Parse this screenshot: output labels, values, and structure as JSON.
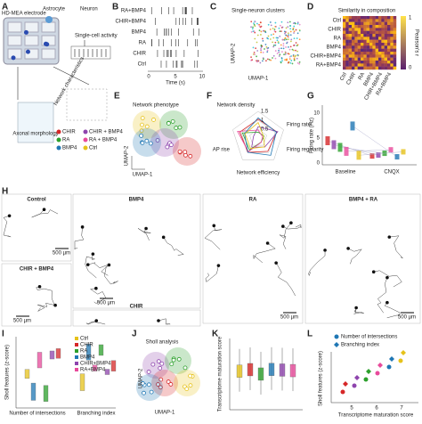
{
  "panels": {
    "A": {
      "label": "A",
      "electrode": "HD-MEA electrode",
      "astrocyte": "Astrocyte",
      "neuron": "Neuron",
      "activity": "Single-cell activity",
      "network": "Network characteristics",
      "morphology": "Axonal morphology",
      "legend": [
        "CHIR",
        "CHIR + BMP4",
        "RA",
        "RA + BMP4",
        "BMP4",
        "Ctrl"
      ]
    },
    "B": {
      "label": "B",
      "rows": [
        "RA+BMP4",
        "CHIR+BMP4",
        "BMP4",
        "RA",
        "CHIR",
        "Ctrl"
      ],
      "xticks": [
        "0",
        "5",
        "10"
      ],
      "xlabel": "Time (s)"
    },
    "C": {
      "label": "C",
      "title": "Single-neuron clusters",
      "ylabel": "UMAP-2",
      "xlabel": "UMAP-1"
    },
    "D": {
      "label": "D",
      "title": "Similarity in composition",
      "rows": [
        "Ctrl",
        "CHIR",
        "RA",
        "BMP4",
        "CHIR+BMP4",
        "RA+BMP4"
      ],
      "colorbar_ticks": [
        "1",
        "0"
      ],
      "colorbar_label": "Pearson's r"
    },
    "E": {
      "label": "E",
      "title": "Network phenotype",
      "ylabel": "UMAP-2",
      "xlabel": "UMAP-1"
    },
    "F": {
      "label": "F",
      "axes": [
        "Network density",
        "Firing rate",
        "Firing regularity",
        "Network efficiency",
        "AP rise"
      ],
      "ticks": [
        "1.5",
        "1",
        "0.5"
      ]
    },
    "G": {
      "label": "G",
      "ylabel": "Firing rate (Hz)",
      "yticks": [
        "0",
        "5",
        "10"
      ],
      "categories": [
        "Baseline",
        "CNQX"
      ]
    },
    "H": {
      "label": "H",
      "titles": [
        "Control",
        "BMP4",
        "RA",
        "BMP4 + RA",
        "CHIR + BMP4",
        "CHIR"
      ],
      "scale_bars": [
        "500 µm",
        "500 µm",
        "500 µm",
        "500 µm",
        "500 µm"
      ]
    },
    "I": {
      "label": "I",
      "ylabel": "Sholl features (z-score)",
      "categories": [
        "Number of intersections",
        "Branching index"
      ],
      "legend": [
        "Ctrl",
        "CHIR",
        "RA",
        "BMP4",
        "CHIR+BMP4",
        "RA+BMP4"
      ]
    },
    "J": {
      "label": "J",
      "title": "Sholl analysis",
      "ylabel": "UMAP-2",
      "xlabel": "UMAP-1"
    },
    "K": {
      "label": "K",
      "ylabel": "Transcriptome maturation score"
    },
    "L": {
      "label": "L",
      "legend": [
        "Number of intersections",
        "Branching index"
      ],
      "ylabel": "Sholl features (z-score)",
      "xticks": [
        "5",
        "6",
        "7"
      ],
      "xlabel": "Transcriptome maturation score"
    }
  }
}
